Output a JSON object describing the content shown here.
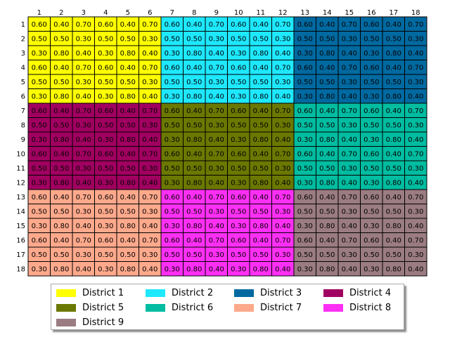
{
  "chart_data": {
    "type": "heatmap",
    "title": "",
    "xlabel": "",
    "ylabel": "",
    "x_ticks": [
      "1",
      "2",
      "3",
      "4",
      "5",
      "6",
      "7",
      "8",
      "9",
      "10",
      "11",
      "12",
      "13",
      "14",
      "15",
      "16",
      "17",
      "18"
    ],
    "y_ticks": [
      "1",
      "2",
      "3",
      "4",
      "5",
      "6",
      "7",
      "8",
      "9",
      "10",
      "11",
      "12",
      "13",
      "14",
      "15",
      "16",
      "17",
      "18"
    ],
    "values": [
      [
        "0.60",
        "0.40",
        "0.70",
        "0.60",
        "0.40",
        "0.70",
        "0.60",
        "0.40",
        "0.70",
        "0.60",
        "0.40",
        "0.70",
        "0.60",
        "0.40",
        "0.70",
        "0.60",
        "0.40",
        "0.70"
      ],
      [
        "0.50",
        "0.50",
        "0.30",
        "0.50",
        "0.50",
        "0.30",
        "0.50",
        "0.50",
        "0.30",
        "0.50",
        "0.50",
        "0.30",
        "0.50",
        "0.50",
        "0.30",
        "0.50",
        "0.50",
        "0.30"
      ],
      [
        "0.30",
        "0.80",
        "0.40",
        "0.30",
        "0.80",
        "0.40",
        "0.30",
        "0.80",
        "0.40",
        "0.30",
        "0.80",
        "0.40",
        "0.30",
        "0.80",
        "0.40",
        "0.30",
        "0.80",
        "0.40"
      ],
      [
        "0.60",
        "0.40",
        "0.70",
        "0.60",
        "0.40",
        "0.70",
        "0.60",
        "0.40",
        "0.70",
        "0.60",
        "0.40",
        "0.70",
        "0.60",
        "0.40",
        "0.70",
        "0.60",
        "0.40",
        "0.70"
      ],
      [
        "0.50",
        "0.50",
        "0.30",
        "0.50",
        "0.50",
        "0.30",
        "0.50",
        "0.50",
        "0.30",
        "0.50",
        "0.50",
        "0.30",
        "0.50",
        "0.50",
        "0.30",
        "0.50",
        "0.50",
        "0.30"
      ],
      [
        "0.30",
        "0.80",
        "0.40",
        "0.30",
        "0.80",
        "0.40",
        "0.30",
        "0.80",
        "0.40",
        "0.30",
        "0.80",
        "0.40",
        "0.30",
        "0.80",
        "0.40",
        "0.30",
        "0.80",
        "0.40"
      ],
      [
        "0.60",
        "0.40",
        "0.70",
        "0.60",
        "0.40",
        "0.70",
        "0.60",
        "0.40",
        "0.70",
        "0.60",
        "0.40",
        "0.70",
        "0.60",
        "0.40",
        "0.70",
        "0.60",
        "0.40",
        "0.70"
      ],
      [
        "0.50",
        "0.50",
        "0.30",
        "0.50",
        "0.50",
        "0.30",
        "0.50",
        "0.50",
        "0.30",
        "0.50",
        "0.50",
        "0.30",
        "0.50",
        "0.50",
        "0.30",
        "0.50",
        "0.50",
        "0.30"
      ],
      [
        "0.30",
        "0.80",
        "0.40",
        "0.30",
        "0.80",
        "0.40",
        "0.30",
        "0.80",
        "0.40",
        "0.30",
        "0.80",
        "0.40",
        "0.30",
        "0.80",
        "0.40",
        "0.30",
        "0.80",
        "0.40"
      ],
      [
        "0.60",
        "0.40",
        "0.70",
        "0.60",
        "0.40",
        "0.70",
        "0.60",
        "0.40",
        "0.70",
        "0.60",
        "0.40",
        "0.70",
        "0.60",
        "0.40",
        "0.70",
        "0.60",
        "0.40",
        "0.70"
      ],
      [
        "0.50",
        "0.50",
        "0.30",
        "0.50",
        "0.50",
        "0.30",
        "0.50",
        "0.50",
        "0.30",
        "0.50",
        "0.50",
        "0.30",
        "0.50",
        "0.50",
        "0.30",
        "0.50",
        "0.50",
        "0.30"
      ],
      [
        "0.30",
        "0.80",
        "0.40",
        "0.30",
        "0.80",
        "0.40",
        "0.30",
        "0.80",
        "0.40",
        "0.30",
        "0.80",
        "0.40",
        "0.30",
        "0.80",
        "0.40",
        "0.30",
        "0.80",
        "0.40"
      ],
      [
        "0.60",
        "0.40",
        "0.70",
        "0.60",
        "0.40",
        "0.70",
        "0.60",
        "0.40",
        "0.70",
        "0.60",
        "0.40",
        "0.70",
        "0.60",
        "0.40",
        "0.70",
        "0.60",
        "0.40",
        "0.70"
      ],
      [
        "0.50",
        "0.50",
        "0.30",
        "0.50",
        "0.50",
        "0.30",
        "0.50",
        "0.50",
        "0.30",
        "0.50",
        "0.50",
        "0.30",
        "0.50",
        "0.50",
        "0.30",
        "0.50",
        "0.50",
        "0.30"
      ],
      [
        "0.30",
        "0.80",
        "0.40",
        "0.30",
        "0.80",
        "0.40",
        "0.30",
        "0.80",
        "0.40",
        "0.30",
        "0.80",
        "0.40",
        "0.30",
        "0.80",
        "0.40",
        "0.30",
        "0.80",
        "0.40"
      ],
      [
        "0.60",
        "0.40",
        "0.70",
        "0.60",
        "0.40",
        "0.70",
        "0.60",
        "0.40",
        "0.70",
        "0.60",
        "0.40",
        "0.70",
        "0.60",
        "0.40",
        "0.70",
        "0.60",
        "0.40",
        "0.70"
      ],
      [
        "0.50",
        "0.50",
        "0.30",
        "0.50",
        "0.50",
        "0.30",
        "0.50",
        "0.50",
        "0.30",
        "0.50",
        "0.50",
        "0.30",
        "0.50",
        "0.50",
        "0.30",
        "0.50",
        "0.50",
        "0.30"
      ],
      [
        "0.30",
        "0.80",
        "0.40",
        "0.30",
        "0.80",
        "0.40",
        "0.30",
        "0.80",
        "0.40",
        "0.30",
        "0.80",
        "0.40",
        "0.30",
        "0.80",
        "0.40",
        "0.30",
        "0.80",
        "0.40"
      ]
    ],
    "district_grid": [
      [
        1,
        2,
        3
      ],
      [
        4,
        5,
        6
      ],
      [
        7,
        8,
        9
      ]
    ],
    "districts": [
      {
        "id": 1,
        "name": "District 1",
        "color": "#ffff00"
      },
      {
        "id": 2,
        "name": "District 2",
        "color": "#1ee8fe"
      },
      {
        "id": 3,
        "name": "District 3",
        "color": "#0069a0"
      },
      {
        "id": 4,
        "name": "District 4",
        "color": "#a00060"
      },
      {
        "id": 5,
        "name": "District 5",
        "color": "#6b7800"
      },
      {
        "id": 6,
        "name": "District 6",
        "color": "#00bca0"
      },
      {
        "id": 7,
        "name": "District 7",
        "color": "#fea98c"
      },
      {
        "id": 8,
        "name": "District 8",
        "color": "#fe2ff5"
      },
      {
        "id": 9,
        "name": "District 9",
        "color": "#9a7c82"
      }
    ],
    "legend": {
      "placement": "bottom-center",
      "columns": 4
    },
    "grid": true
  }
}
